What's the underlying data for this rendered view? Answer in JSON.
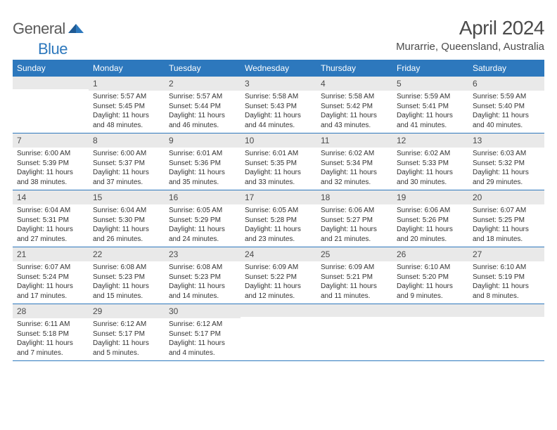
{
  "logo": {
    "word1": "General",
    "word2": "Blue"
  },
  "title": "April 2024",
  "location": "Murarrie, Queensland, Australia",
  "colors": {
    "accent": "#2d78bd",
    "daynum_bg": "#e9e9e9",
    "text": "#333333",
    "header_text": "#4b4b4b",
    "page_bg": "#ffffff",
    "dow_text": "#ffffff"
  },
  "typography": {
    "title_fontsize": 28,
    "location_fontsize": 15,
    "dow_fontsize": 12,
    "daynum_fontsize": 12,
    "body_fontsize": 10
  },
  "dow": [
    "Sunday",
    "Monday",
    "Tuesday",
    "Wednesday",
    "Thursday",
    "Friday",
    "Saturday"
  ],
  "weeks": [
    [
      {
        "num": "",
        "lines": [
          "",
          "",
          "",
          ""
        ]
      },
      {
        "num": "1",
        "lines": [
          "Sunrise: 5:57 AM",
          "Sunset: 5:45 PM",
          "Daylight: 11 hours",
          "and 48 minutes."
        ]
      },
      {
        "num": "2",
        "lines": [
          "Sunrise: 5:57 AM",
          "Sunset: 5:44 PM",
          "Daylight: 11 hours",
          "and 46 minutes."
        ]
      },
      {
        "num": "3",
        "lines": [
          "Sunrise: 5:58 AM",
          "Sunset: 5:43 PM",
          "Daylight: 11 hours",
          "and 44 minutes."
        ]
      },
      {
        "num": "4",
        "lines": [
          "Sunrise: 5:58 AM",
          "Sunset: 5:42 PM",
          "Daylight: 11 hours",
          "and 43 minutes."
        ]
      },
      {
        "num": "5",
        "lines": [
          "Sunrise: 5:59 AM",
          "Sunset: 5:41 PM",
          "Daylight: 11 hours",
          "and 41 minutes."
        ]
      },
      {
        "num": "6",
        "lines": [
          "Sunrise: 5:59 AM",
          "Sunset: 5:40 PM",
          "Daylight: 11 hours",
          "and 40 minutes."
        ]
      }
    ],
    [
      {
        "num": "7",
        "lines": [
          "Sunrise: 6:00 AM",
          "Sunset: 5:39 PM",
          "Daylight: 11 hours",
          "and 38 minutes."
        ]
      },
      {
        "num": "8",
        "lines": [
          "Sunrise: 6:00 AM",
          "Sunset: 5:37 PM",
          "Daylight: 11 hours",
          "and 37 minutes."
        ]
      },
      {
        "num": "9",
        "lines": [
          "Sunrise: 6:01 AM",
          "Sunset: 5:36 PM",
          "Daylight: 11 hours",
          "and 35 minutes."
        ]
      },
      {
        "num": "10",
        "lines": [
          "Sunrise: 6:01 AM",
          "Sunset: 5:35 PM",
          "Daylight: 11 hours",
          "and 33 minutes."
        ]
      },
      {
        "num": "11",
        "lines": [
          "Sunrise: 6:02 AM",
          "Sunset: 5:34 PM",
          "Daylight: 11 hours",
          "and 32 minutes."
        ]
      },
      {
        "num": "12",
        "lines": [
          "Sunrise: 6:02 AM",
          "Sunset: 5:33 PM",
          "Daylight: 11 hours",
          "and 30 minutes."
        ]
      },
      {
        "num": "13",
        "lines": [
          "Sunrise: 6:03 AM",
          "Sunset: 5:32 PM",
          "Daylight: 11 hours",
          "and 29 minutes."
        ]
      }
    ],
    [
      {
        "num": "14",
        "lines": [
          "Sunrise: 6:04 AM",
          "Sunset: 5:31 PM",
          "Daylight: 11 hours",
          "and 27 minutes."
        ]
      },
      {
        "num": "15",
        "lines": [
          "Sunrise: 6:04 AM",
          "Sunset: 5:30 PM",
          "Daylight: 11 hours",
          "and 26 minutes."
        ]
      },
      {
        "num": "16",
        "lines": [
          "Sunrise: 6:05 AM",
          "Sunset: 5:29 PM",
          "Daylight: 11 hours",
          "and 24 minutes."
        ]
      },
      {
        "num": "17",
        "lines": [
          "Sunrise: 6:05 AM",
          "Sunset: 5:28 PM",
          "Daylight: 11 hours",
          "and 23 minutes."
        ]
      },
      {
        "num": "18",
        "lines": [
          "Sunrise: 6:06 AM",
          "Sunset: 5:27 PM",
          "Daylight: 11 hours",
          "and 21 minutes."
        ]
      },
      {
        "num": "19",
        "lines": [
          "Sunrise: 6:06 AM",
          "Sunset: 5:26 PM",
          "Daylight: 11 hours",
          "and 20 minutes."
        ]
      },
      {
        "num": "20",
        "lines": [
          "Sunrise: 6:07 AM",
          "Sunset: 5:25 PM",
          "Daylight: 11 hours",
          "and 18 minutes."
        ]
      }
    ],
    [
      {
        "num": "21",
        "lines": [
          "Sunrise: 6:07 AM",
          "Sunset: 5:24 PM",
          "Daylight: 11 hours",
          "and 17 minutes."
        ]
      },
      {
        "num": "22",
        "lines": [
          "Sunrise: 6:08 AM",
          "Sunset: 5:23 PM",
          "Daylight: 11 hours",
          "and 15 minutes."
        ]
      },
      {
        "num": "23",
        "lines": [
          "Sunrise: 6:08 AM",
          "Sunset: 5:23 PM",
          "Daylight: 11 hours",
          "and 14 minutes."
        ]
      },
      {
        "num": "24",
        "lines": [
          "Sunrise: 6:09 AM",
          "Sunset: 5:22 PM",
          "Daylight: 11 hours",
          "and 12 minutes."
        ]
      },
      {
        "num": "25",
        "lines": [
          "Sunrise: 6:09 AM",
          "Sunset: 5:21 PM",
          "Daylight: 11 hours",
          "and 11 minutes."
        ]
      },
      {
        "num": "26",
        "lines": [
          "Sunrise: 6:10 AM",
          "Sunset: 5:20 PM",
          "Daylight: 11 hours",
          "and 9 minutes."
        ]
      },
      {
        "num": "27",
        "lines": [
          "Sunrise: 6:10 AM",
          "Sunset: 5:19 PM",
          "Daylight: 11 hours",
          "and 8 minutes."
        ]
      }
    ],
    [
      {
        "num": "28",
        "lines": [
          "Sunrise: 6:11 AM",
          "Sunset: 5:18 PM",
          "Daylight: 11 hours",
          "and 7 minutes."
        ]
      },
      {
        "num": "29",
        "lines": [
          "Sunrise: 6:12 AM",
          "Sunset: 5:17 PM",
          "Daylight: 11 hours",
          "and 5 minutes."
        ]
      },
      {
        "num": "30",
        "lines": [
          "Sunrise: 6:12 AM",
          "Sunset: 5:17 PM",
          "Daylight: 11 hours",
          "and 4 minutes."
        ]
      },
      {
        "num": "",
        "lines": [
          "",
          "",
          "",
          ""
        ]
      },
      {
        "num": "",
        "lines": [
          "",
          "",
          "",
          ""
        ]
      },
      {
        "num": "",
        "lines": [
          "",
          "",
          "",
          ""
        ]
      },
      {
        "num": "",
        "lines": [
          "",
          "",
          "",
          ""
        ]
      }
    ]
  ]
}
